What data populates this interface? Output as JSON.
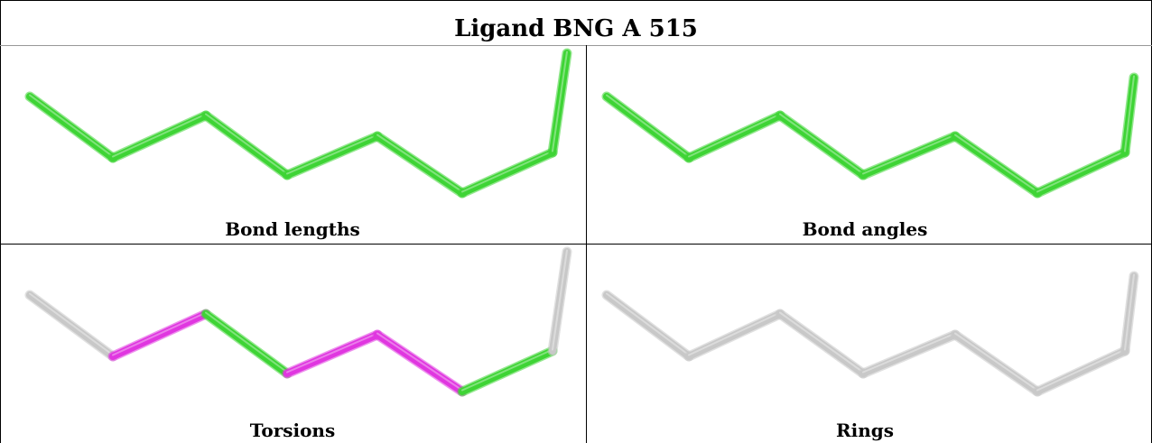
{
  "title": "Ligand BNG A 515",
  "panels": [
    {
      "caption": "Bond lengths",
      "bond_colors": [
        "green",
        "green",
        "green",
        "green",
        "green",
        "green",
        "green"
      ]
    },
    {
      "caption": "Bond angles",
      "bond_colors": [
        "green",
        "green",
        "green",
        "green",
        "green",
        "green",
        "green"
      ]
    },
    {
      "caption": "Torsions",
      "bond_colors": [
        "grey",
        "magenta",
        "green",
        "magenta",
        "magenta",
        "green",
        "grey"
      ]
    },
    {
      "caption": "Rings",
      "bond_colors": [
        "grey",
        "grey",
        "grey",
        "grey",
        "grey",
        "grey",
        "grey"
      ]
    }
  ],
  "colors": {
    "green": "#3ed435",
    "magenta": "#e036e0",
    "grey": "#c8c8c8"
  }
}
